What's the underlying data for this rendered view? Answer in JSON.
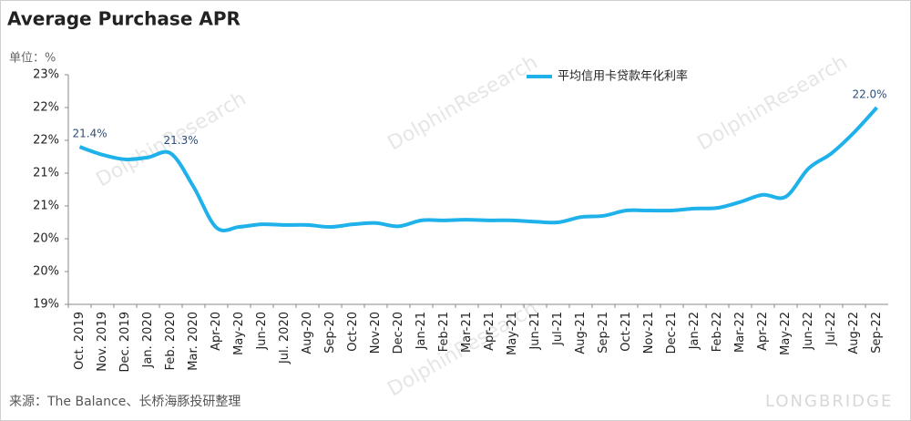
{
  "chart_data": {
    "type": "line",
    "title": "Average Purchase APR",
    "y_label": "单位：%",
    "source": "来源：The Balance、长桥海豚投研整理",
    "watermark": [
      "DolphinResearch",
      "LONGBRIDGE"
    ],
    "categories": [
      "Oct. 2019",
      "Nov. 2019",
      "Dec. 2019",
      "Jan. 2020",
      "Feb. 2020",
      "Mar. 2020",
      "Apr-20",
      "May-20",
      "Jun-20",
      "Jul. 2020",
      "Aug-20",
      "Sep-20",
      "Oct-20",
      "Nov-20",
      "Dec-20",
      "Jan-21",
      "Feb-21",
      "Mar-21",
      "Apr-21",
      "May-21",
      "Jun-21",
      "Jul-21",
      "Aug-21",
      "Sep-21",
      "Oct-21",
      "Nov-21",
      "Dec-21",
      "Jan-22",
      "Feb-22",
      "Mar-22",
      "Apr-22",
      "May-22",
      "Jun-22",
      "Jul-22",
      "Aug-22",
      "Sep-22"
    ],
    "series": [
      {
        "name": "平均信用卡贷款年化利率",
        "color": "#1eb1ea",
        "values": [
          21.4,
          21.28,
          21.21,
          21.24,
          21.3,
          20.79,
          20.17,
          20.18,
          20.22,
          20.21,
          20.21,
          20.18,
          20.22,
          20.24,
          20.19,
          20.28,
          20.28,
          20.29,
          20.28,
          20.28,
          20.26,
          20.25,
          20.33,
          20.35,
          20.43,
          20.43,
          20.43,
          20.46,
          20.47,
          20.56,
          20.67,
          20.64,
          21.07,
          21.3,
          21.62,
          22.0
        ],
        "value_labels": [
          "21.4%",
          null,
          null,
          null,
          "21.3%",
          null,
          null,
          null,
          null,
          null,
          null,
          null,
          null,
          null,
          null,
          null,
          null,
          null,
          null,
          null,
          null,
          null,
          null,
          null,
          null,
          null,
          null,
          null,
          null,
          null,
          null,
          null,
          null,
          null,
          null,
          "22.0%"
        ]
      }
    ],
    "ylim": [
      19,
      22.5
    ],
    "yticks": [
      {
        "value": 19,
        "label": "19%"
      },
      {
        "value": 19.5,
        "label": "20%"
      },
      {
        "value": 20,
        "label": "20%"
      },
      {
        "value": 20.5,
        "label": "21%"
      },
      {
        "value": 21,
        "label": "21%"
      },
      {
        "value": 21.5,
        "label": "22%"
      },
      {
        "value": 22,
        "label": "22%"
      },
      {
        "value": 22.5,
        "label": "23%"
      }
    ],
    "grid": false,
    "legend": "top"
  }
}
